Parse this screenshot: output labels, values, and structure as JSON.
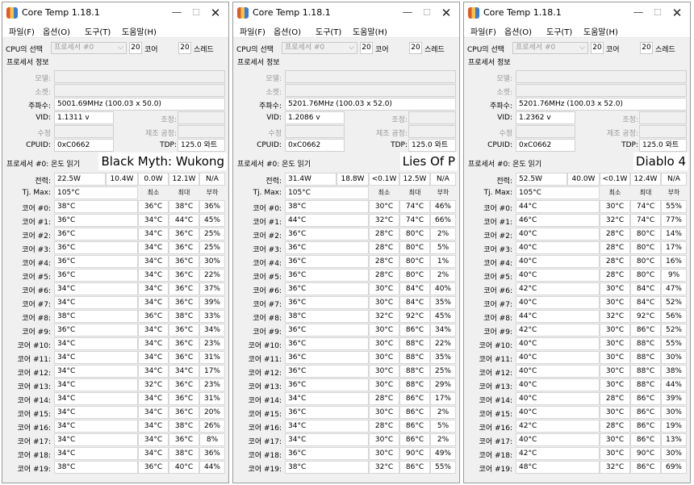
{
  "shared": {
    "title": "Core Temp 1.18.1",
    "menu": [
      "파일(F)",
      "옵션(O)",
      "도구(T)",
      "도움말(H)"
    ],
    "cpu_select_label": "CPU의 선택",
    "cpu_select_value": "프로세서 #0",
    "cores_count": "20",
    "cores_label": "코어",
    "threads_count": "20",
    "threads_label": "스레드",
    "processor_info_label": "프로세서 정보",
    "model_label": "모델:",
    "socket_label": "소켓:",
    "frequency_label": "주파수:",
    "vid_label": "VID:",
    "stepping_label": "조정:",
    "revision_label": "수정",
    "lithography_label": "제조 공정:",
    "cpuid_label": "CPUID:",
    "tdp_label": "TDP:",
    "temp_section_label": "프로세서 #0: 온도 읽기",
    "power_label": "전력:",
    "tjmax_label": "Tj. Max:",
    "min_header": "최소",
    "max_header": "최대",
    "load_header": "부하",
    "core_labels": [
      "코어 #0:",
      "코어 #1:",
      "코어 #2:",
      "코어 #3:",
      "코어 #4:",
      "코어 #5:",
      "코어 #6:",
      "코어 #7:",
      "코어 #8:",
      "코어 #9:",
      "코어 #10:",
      "코어 #11:",
      "코어 #12:",
      "코어 #13:",
      "코어 #14:",
      "코어 #15:",
      "코어 #16:",
      "코어 #17:",
      "코어 #18:",
      "코어 #19:"
    ]
  },
  "windows": [
    {
      "overlay_label": "Black Myth: Wukong",
      "frequency": "5001.69MHz (100.03 x 50.0)",
      "vid": "1.1311 v",
      "cpuid": "0xC0662",
      "tdp": "125.0 와트",
      "power": [
        "22.5W",
        "10.4W",
        "0.0W",
        "12.1W",
        "N/A"
      ],
      "tjmax": "105°C",
      "cores": [
        [
          "38°C",
          "36°C",
          "38°C",
          "36%"
        ],
        [
          "36°C",
          "34°C",
          "44°C",
          "45%"
        ],
        [
          "36°C",
          "34°C",
          "36°C",
          "25%"
        ],
        [
          "36°C",
          "34°C",
          "36°C",
          "25%"
        ],
        [
          "36°C",
          "34°C",
          "36°C",
          "30%"
        ],
        [
          "36°C",
          "34°C",
          "36°C",
          "22%"
        ],
        [
          "34°C",
          "34°C",
          "36°C",
          "37%"
        ],
        [
          "34°C",
          "34°C",
          "36°C",
          "39%"
        ],
        [
          "38°C",
          "36°C",
          "38°C",
          "33%"
        ],
        [
          "36°C",
          "34°C",
          "36°C",
          "34%"
        ],
        [
          "34°C",
          "34°C",
          "36°C",
          "23%"
        ],
        [
          "34°C",
          "34°C",
          "36°C",
          "31%"
        ],
        [
          "34°C",
          "34°C",
          "34°C",
          "17%"
        ],
        [
          "34°C",
          "32°C",
          "36°C",
          "23%"
        ],
        [
          "34°C",
          "34°C",
          "36°C",
          "31%"
        ],
        [
          "34°C",
          "34°C",
          "36°C",
          "20%"
        ],
        [
          "34°C",
          "34°C",
          "38°C",
          "26%"
        ],
        [
          "34°C",
          "34°C",
          "36°C",
          "8%"
        ],
        [
          "34°C",
          "34°C",
          "38°C",
          "36%"
        ],
        [
          "38°C",
          "36°C",
          "40°C",
          "44%"
        ]
      ]
    },
    {
      "overlay_label": "Lies Of P",
      "frequency": "5201.76MHz (100.03 x 52.0)",
      "vid": "1.2086 v",
      "cpuid": "0xC0662",
      "tdp": "125.0 와트",
      "power": [
        "31.4W",
        "18.8W",
        "<0.1W",
        "12.5W",
        "N/A"
      ],
      "tjmax": "105°C",
      "cores": [
        [
          "38°C",
          "30°C",
          "74°C",
          "46%"
        ],
        [
          "44°C",
          "32°C",
          "74°C",
          "66%"
        ],
        [
          "36°C",
          "28°C",
          "80°C",
          "2%"
        ],
        [
          "36°C",
          "28°C",
          "80°C",
          "5%"
        ],
        [
          "36°C",
          "28°C",
          "80°C",
          "1%"
        ],
        [
          "36°C",
          "28°C",
          "80°C",
          "2%"
        ],
        [
          "36°C",
          "30°C",
          "84°C",
          "40%"
        ],
        [
          "36°C",
          "30°C",
          "84°C",
          "35%"
        ],
        [
          "38°C",
          "32°C",
          "92°C",
          "45%"
        ],
        [
          "36°C",
          "30°C",
          "86°C",
          "34%"
        ],
        [
          "36°C",
          "30°C",
          "88°C",
          "22%"
        ],
        [
          "36°C",
          "30°C",
          "88°C",
          "35%"
        ],
        [
          "36°C",
          "30°C",
          "88°C",
          "25%"
        ],
        [
          "36°C",
          "30°C",
          "88°C",
          "29%"
        ],
        [
          "34°C",
          "28°C",
          "86°C",
          "17%"
        ],
        [
          "36°C",
          "30°C",
          "86°C",
          "2%"
        ],
        [
          "34°C",
          "28°C",
          "86°C",
          "5%"
        ],
        [
          "34°C",
          "30°C",
          "86°C",
          "2%"
        ],
        [
          "36°C",
          "30°C",
          "90°C",
          "49%"
        ],
        [
          "38°C",
          "32°C",
          "86°C",
          "55%"
        ]
      ]
    },
    {
      "overlay_label": "Diablo 4",
      "frequency": "5201.76MHz (100.03 x 52.0)",
      "vid": "1.2362 v",
      "cpuid": "0xC0662",
      "tdp": "125.0 와트",
      "power": [
        "52.5W",
        "40.0W",
        "<0.1W",
        "12.4W",
        "N/A"
      ],
      "tjmax": "105°C",
      "cores": [
        [
          "44°C",
          "30°C",
          "74°C",
          "55%"
        ],
        [
          "46°C",
          "32°C",
          "74°C",
          "77%"
        ],
        [
          "40°C",
          "28°C",
          "80°C",
          "14%"
        ],
        [
          "40°C",
          "28°C",
          "80°C",
          "17%"
        ],
        [
          "40°C",
          "28°C",
          "80°C",
          "16%"
        ],
        [
          "40°C",
          "28°C",
          "80°C",
          "9%"
        ],
        [
          "42°C",
          "30°C",
          "84°C",
          "47%"
        ],
        [
          "40°C",
          "30°C",
          "84°C",
          "52%"
        ],
        [
          "44°C",
          "32°C",
          "92°C",
          "56%"
        ],
        [
          "42°C",
          "30°C",
          "86°C",
          "52%"
        ],
        [
          "40°C",
          "30°C",
          "88°C",
          "55%"
        ],
        [
          "40°C",
          "30°C",
          "88°C",
          "30%"
        ],
        [
          "40°C",
          "30°C",
          "88°C",
          "38%"
        ],
        [
          "40°C",
          "30°C",
          "88°C",
          "44%"
        ],
        [
          "40°C",
          "28°C",
          "86°C",
          "39%"
        ],
        [
          "40°C",
          "30°C",
          "86°C",
          "30%"
        ],
        [
          "42°C",
          "28°C",
          "86°C",
          "19%"
        ],
        [
          "40°C",
          "30°C",
          "86°C",
          "13%"
        ],
        [
          "42°C",
          "30°C",
          "90°C",
          "30%"
        ],
        [
          "48°C",
          "32°C",
          "86°C",
          "69%"
        ]
      ]
    }
  ]
}
